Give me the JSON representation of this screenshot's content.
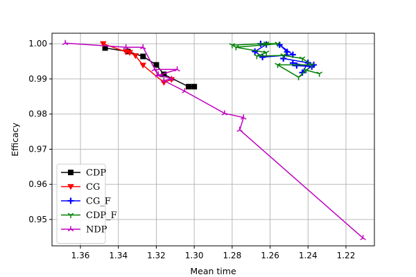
{
  "chart_data": {
    "type": "line",
    "title": "",
    "xlabel": "Mean time",
    "ylabel": "Efficacy",
    "xlim": [
      1.375,
      1.205
    ],
    "ylim": [
      0.9425,
      1.003
    ],
    "x_inverted": true,
    "xticks": [
      1.36,
      1.34,
      1.32,
      1.3,
      1.28,
      1.26,
      1.24,
      1.22
    ],
    "xtick_labels": [
      "1.36",
      "1.34",
      "1.32",
      "1.30",
      "1.28",
      "1.26",
      "1.24",
      "1.22"
    ],
    "yticks": [
      0.95,
      0.96,
      0.97,
      0.98,
      0.99,
      1.0
    ],
    "ytick_labels": [
      "0.95",
      "0.96",
      "0.97",
      "0.98",
      "0.99",
      "1.00"
    ],
    "grid": true,
    "legend_position": "lower-left",
    "series": [
      {
        "name": "CDP",
        "color": "#000000",
        "marker": "square",
        "points": [
          [
            1.347,
            0.9988
          ],
          [
            1.335,
            0.9978
          ],
          [
            1.327,
            0.9964
          ],
          [
            1.32,
            0.994
          ],
          [
            1.316,
            0.9913
          ],
          [
            1.303,
            0.9878
          ],
          [
            1.3,
            0.9878
          ]
        ]
      },
      {
        "name": "CG",
        "color": "#ff0000",
        "marker": "triangle-down",
        "points": [
          [
            1.348,
            1.0
          ],
          [
            1.336,
            0.9977
          ],
          [
            1.334,
            0.9975
          ],
          [
            1.331,
            0.9966
          ],
          [
            1.327,
            0.9939
          ],
          [
            1.316,
            0.989
          ],
          [
            1.312,
            0.9898
          ]
        ]
      },
      {
        "name": "CG_F",
        "color": "#0000ff",
        "marker": "plus",
        "points": [
          [
            1.265,
            1.0
          ],
          [
            1.262,
            0.9998
          ],
          [
            1.268,
            0.9978
          ],
          [
            1.264,
            0.9962
          ],
          [
            1.248,
            0.9969
          ],
          [
            1.255,
            0.9997
          ],
          [
            1.251,
            0.9977
          ],
          [
            1.253,
            0.9958
          ],
          [
            1.24,
            0.9946
          ],
          [
            1.243,
            0.9918
          ],
          [
            1.237,
            0.994
          ],
          [
            1.246,
            0.9938
          ],
          [
            1.238,
            0.9935
          ],
          [
            1.248,
            0.9945
          ]
        ]
      },
      {
        "name": "CDP_F",
        "color": "#008000",
        "marker": "tri-down",
        "points": [
          [
            1.28,
            0.9996
          ],
          [
            1.262,
            1.0001
          ],
          [
            1.256,
            1.0
          ],
          [
            1.278,
            0.999
          ],
          [
            1.262,
            0.9975
          ],
          [
            1.267,
            0.9965
          ],
          [
            1.253,
            0.9967
          ],
          [
            1.243,
            0.9958
          ],
          [
            1.238,
            0.994
          ],
          [
            1.256,
            0.994
          ],
          [
            1.245,
            0.9905
          ],
          [
            1.241,
            0.9925
          ],
          [
            1.234,
            0.9915
          ]
        ]
      },
      {
        "name": "NDP",
        "color": "#bf00bf",
        "marker": "tri-up",
        "points": [
          [
            1.368,
            1.0002
          ],
          [
            1.336,
            0.999
          ],
          [
            1.327,
            0.999
          ],
          [
            1.319,
            0.991
          ],
          [
            1.309,
            0.9927
          ],
          [
            1.321,
            0.9927
          ],
          [
            1.319,
            0.9913
          ],
          [
            1.312,
            0.99
          ],
          [
            1.316,
            0.9895
          ],
          [
            1.305,
            0.9865
          ],
          [
            1.284,
            0.9802
          ],
          [
            1.274,
            0.979
          ],
          [
            1.276,
            0.9755
          ],
          [
            1.211,
            0.9447
          ]
        ]
      }
    ]
  }
}
